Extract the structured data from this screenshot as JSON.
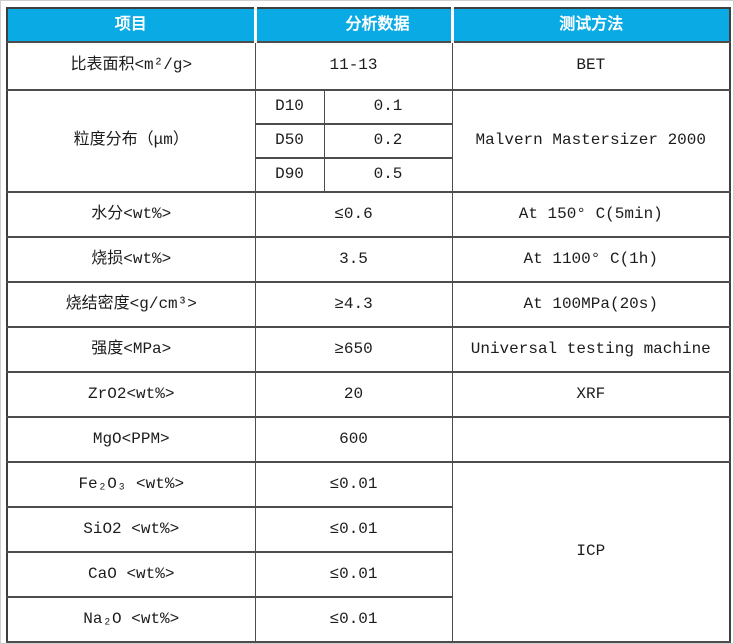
{
  "theme": {
    "header_bg": "#0aabe5",
    "header_text_color": "#ffffff",
    "grid_line_color": "#4d4d4d"
  },
  "header": {
    "item": "项目",
    "data": "分析数据",
    "method": "测试方法"
  },
  "rows": {
    "surface_area": {
      "item": "比表面积<m²/g>",
      "value": "11-13",
      "method": "BET"
    },
    "particle_size": {
      "item": "粒度分布（μm）",
      "method": "Malvern Mastersizer 2000",
      "d10_label": "D10",
      "d10_value": "0.1",
      "d50_label": "D50",
      "d50_value": "0.2",
      "d90_label": "D90",
      "d90_value": "0.5"
    },
    "moisture": {
      "item": "水分<wt%>",
      "value": "≤0.6",
      "method": "At 150° C(5min)"
    },
    "ignition_loss": {
      "item": "烧损<wt%>",
      "value": "3.5",
      "method": "At 1100° C(1h)"
    },
    "sintered_density": {
      "item": "烧结密度<g/cm³>",
      "value": "≥4.3",
      "method": "At 100MPa(20s)"
    },
    "strength": {
      "item": "强度<MPa>",
      "value": "≥650",
      "method": "Universal testing machine"
    },
    "zro2": {
      "item": "ZrO2<wt%>",
      "value": "20",
      "method": "XRF"
    },
    "mgo": {
      "item": "MgO<PPM>",
      "value": "600",
      "method": ""
    },
    "fe2o3": {
      "item": "Fe₂O₃ <wt%>",
      "value": "≤0.01"
    },
    "sio2": {
      "item": "SiO2 <wt%>",
      "value": "≤0.01"
    },
    "cao": {
      "item": "CaO <wt%>",
      "value": "≤0.01"
    },
    "na2o": {
      "item": "Na₂O <wt%>",
      "value": "≤0.01"
    },
    "icp_method": "ICP"
  }
}
